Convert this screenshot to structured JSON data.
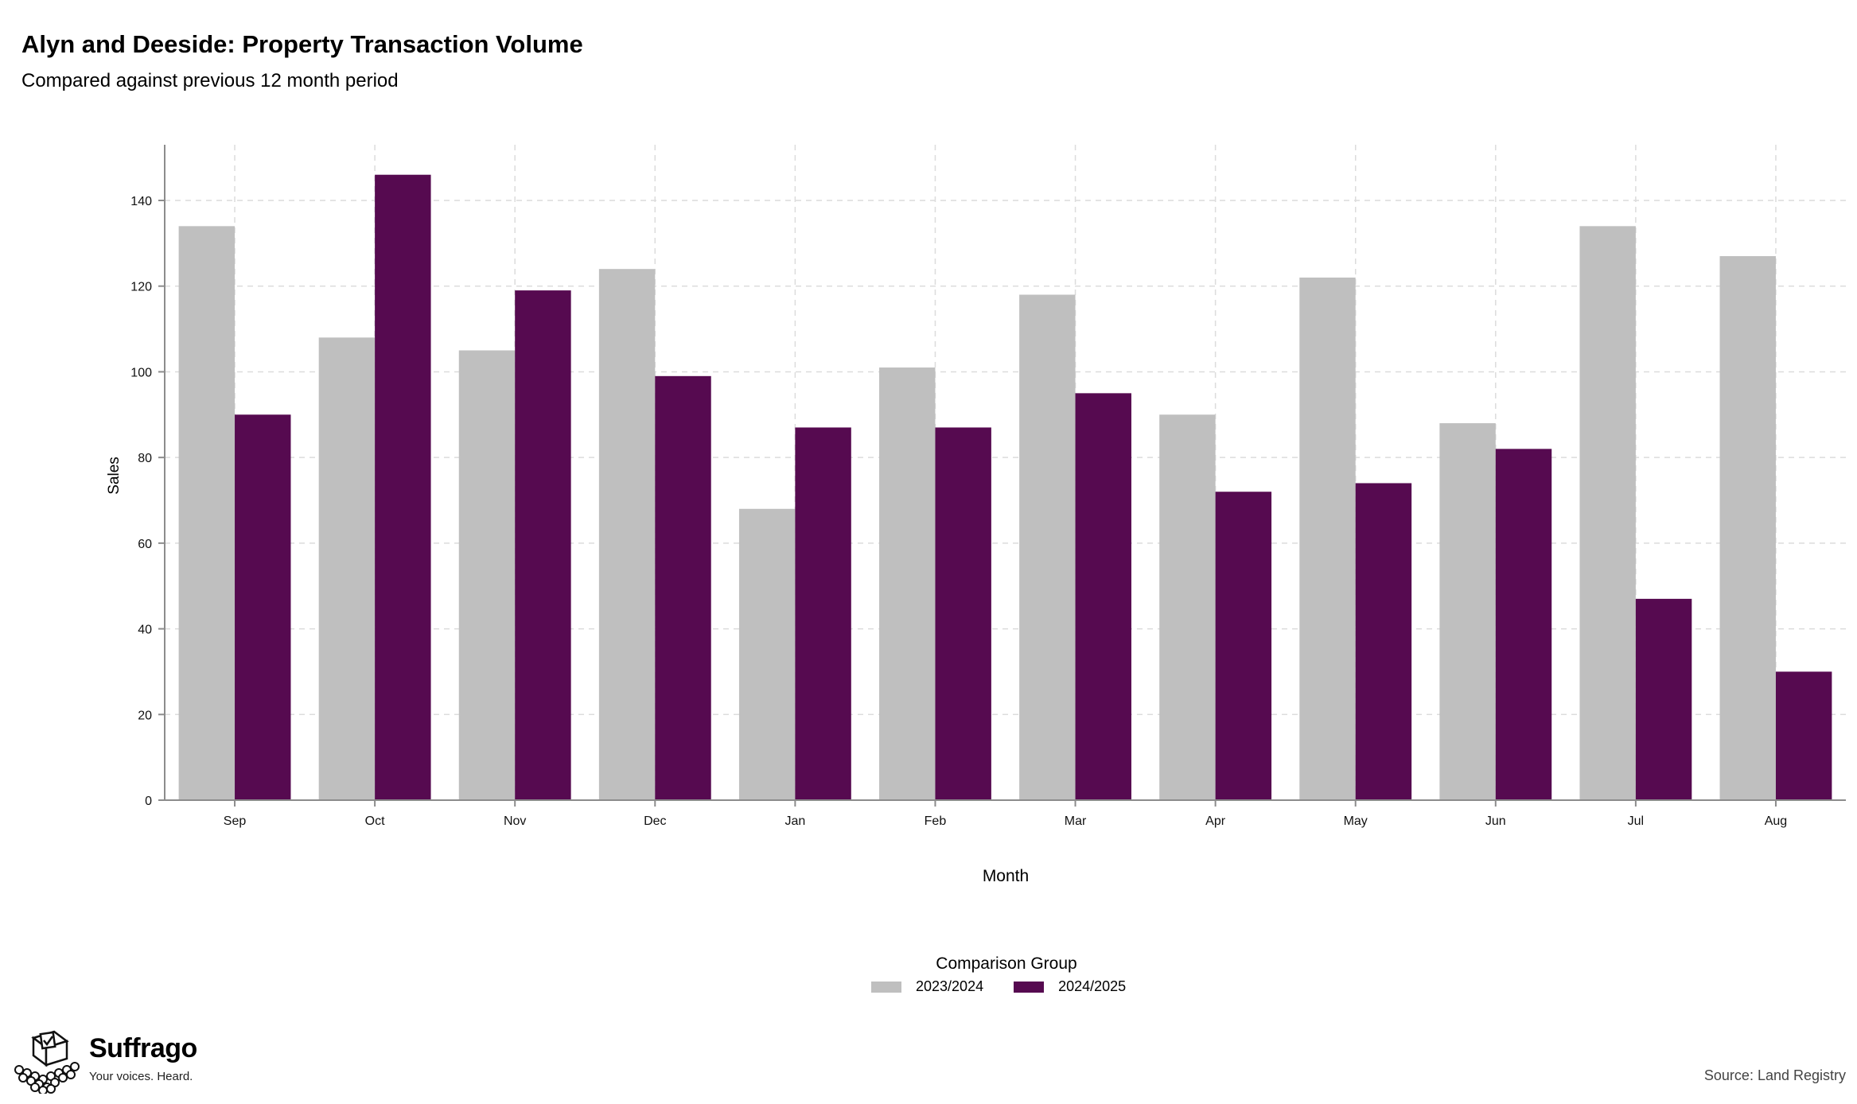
{
  "chart_data": {
    "type": "bar",
    "title": "Alyn and Deeside: Property Transaction Volume",
    "subtitle": "Compared against previous 12 month period",
    "xlabel": "Month",
    "ylabel": "Sales",
    "categories": [
      "Sep",
      "Oct",
      "Nov",
      "Dec",
      "Jan",
      "Feb",
      "Mar",
      "Apr",
      "May",
      "Jun",
      "Jul",
      "Aug"
    ],
    "series": [
      {
        "name": "2023/2024",
        "color": "#bfbfbf",
        "values": [
          134,
          108,
          105,
          124,
          68,
          101,
          118,
          90,
          122,
          88,
          134,
          127
        ]
      },
      {
        "name": "2024/2025",
        "color": "#560a50",
        "values": [
          90,
          146,
          119,
          99,
          87,
          87,
          95,
          72,
          74,
          82,
          47,
          30
        ]
      }
    ],
    "ylim": [
      0,
      153
    ],
    "yticks": [
      0,
      20,
      40,
      60,
      80,
      100,
      120,
      140
    ],
    "grid": true,
    "legend_title": "Comparison Group",
    "legend_position": "bottom"
  },
  "branding": {
    "name": "Suffrago",
    "tagline": "Your voices. Heard."
  },
  "source": "Source: Land Registry"
}
